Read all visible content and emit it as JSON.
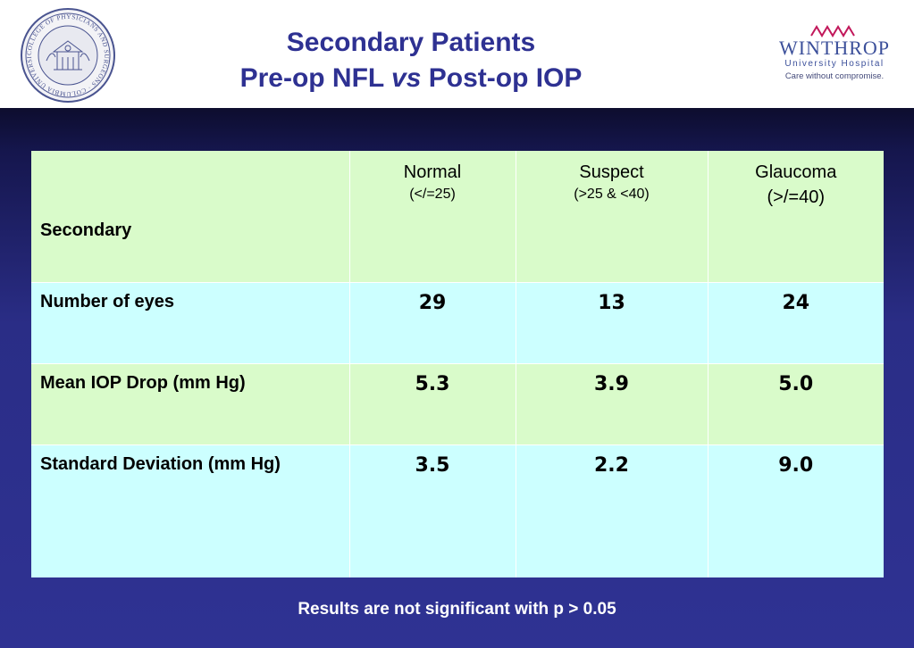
{
  "header": {
    "title_line1": "Secondary Patients",
    "title_line2_a": "Pre-op NFL ",
    "title_line2_em": "vs",
    "title_line2_b": " Post-op IOP",
    "seal_text": "COLLEGE OF PHYSICIANS AND SURGEONS · COLUMBIA UNIVERSITY",
    "logo": {
      "name": "WINTHROP",
      "subtitle": "University Hospital",
      "tagline": "Care without compromise."
    }
  },
  "table": {
    "corner_label": "Secondary",
    "columns": [
      {
        "name": "Normal",
        "range": "(</=25)"
      },
      {
        "name": "Suspect",
        "range": "(>25 & <40)"
      },
      {
        "name": "Glaucoma",
        "range": "(>/=40)"
      }
    ],
    "rows": [
      {
        "label": "Number of eyes",
        "values": [
          "29",
          "13",
          "24"
        ]
      },
      {
        "label": "Mean IOP Drop (mm Hg)",
        "values": [
          "5.3",
          "3.9",
          "5.0"
        ]
      },
      {
        "label": "Standard Deviation (mm Hg)",
        "values": [
          "3.5",
          "2.2",
          "9.0"
        ]
      }
    ]
  },
  "footnote": "Results are not significant with p > 0.05",
  "colors": {
    "title": "#2e3192",
    "background": "#2f3293",
    "row_green": "#d9fbca",
    "row_cyan": "#ccffff"
  }
}
